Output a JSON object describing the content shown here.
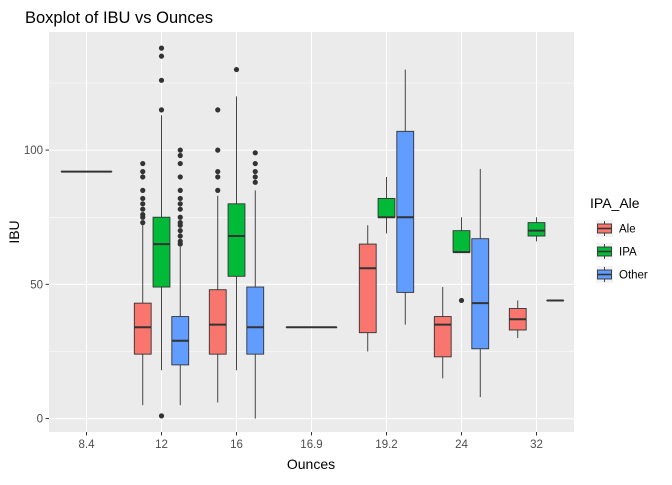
{
  "chart_data": {
    "type": "boxplot",
    "title": "Boxplot of IBU vs Ounces",
    "xlabel": "Ounces",
    "ylabel": "IBU",
    "categories": [
      "8.4",
      "12",
      "16",
      "16.9",
      "19.2",
      "24",
      "32"
    ],
    "y_ticks": [
      0,
      50,
      100
    ],
    "ylim": [
      -5,
      144
    ],
    "grid": true,
    "legend": {
      "title": "IPA_Ale",
      "position": "right",
      "entries": [
        {
          "name": "Ale",
          "color": "#F8766D"
        },
        {
          "name": "IPA",
          "color": "#00BA38"
        },
        {
          "name": "Other",
          "color": "#619CFF"
        }
      ]
    },
    "groups_per_category": 3,
    "boxes": [
      {
        "category": "8.4",
        "group": "All",
        "slot": -1,
        "span": 3,
        "color": "#F8766D",
        "min": 92,
        "q1": 92,
        "median": 92,
        "q3": 92,
        "max": 92,
        "outliers": []
      },
      {
        "category": "12",
        "group": "Ale",
        "slot": 0,
        "span": 1,
        "color": "#F8766D",
        "min": 5,
        "q1": 24,
        "median": 34,
        "q3": 43,
        "max": 72,
        "outliers": [
          73,
          75,
          76,
          78,
          80,
          82,
          85,
          90,
          92,
          95
        ]
      },
      {
        "category": "12",
        "group": "IPA",
        "slot": 1,
        "span": 1,
        "color": "#00BA38",
        "min": 18,
        "q1": 49,
        "median": 65,
        "q3": 75,
        "max": 113,
        "outliers": [
          1,
          115,
          126,
          135,
          138
        ]
      },
      {
        "category": "12",
        "group": "Other",
        "slot": 2,
        "span": 1,
        "color": "#619CFF",
        "min": 5,
        "q1": 20,
        "median": 29,
        "q3": 38,
        "max": 64,
        "outliers": [
          65,
          66,
          68,
          70,
          72,
          73,
          75,
          78,
          80,
          82,
          85,
          90,
          95,
          98,
          100
        ]
      },
      {
        "category": "16",
        "group": "Ale",
        "slot": 0,
        "span": 1,
        "color": "#F8766D",
        "min": 6,
        "q1": 24,
        "median": 35,
        "q3": 48,
        "max": 83,
        "outliers": [
          85,
          90,
          92,
          100,
          115
        ]
      },
      {
        "category": "16",
        "group": "IPA",
        "slot": 1,
        "span": 1,
        "color": "#00BA38",
        "min": 18,
        "q1": 53,
        "median": 68,
        "q3": 80,
        "max": 120,
        "outliers": [
          130
        ]
      },
      {
        "category": "16",
        "group": "Other",
        "slot": 2,
        "span": 1,
        "color": "#619CFF",
        "min": 0,
        "q1": 24,
        "median": 34,
        "q3": 49,
        "max": 85,
        "outliers": [
          88,
          90,
          92,
          95,
          99
        ]
      },
      {
        "category": "16.9",
        "group": "All",
        "slot": -1,
        "span": 3,
        "color": "#619CFF",
        "min": 34,
        "q1": 34,
        "median": 34,
        "q3": 34,
        "max": 34,
        "outliers": []
      },
      {
        "category": "19.2",
        "group": "Ale",
        "slot": 0,
        "span": 1,
        "color": "#F8766D",
        "min": 25,
        "q1": 32,
        "median": 56,
        "q3": 65,
        "max": 72,
        "outliers": []
      },
      {
        "category": "19.2",
        "group": "IPA",
        "slot": 1,
        "span": 1,
        "color": "#00BA38",
        "min": 69,
        "q1": 75,
        "median": 75,
        "q3": 82,
        "max": 90,
        "outliers": []
      },
      {
        "category": "19.2",
        "group": "Other",
        "slot": 2,
        "span": 1,
        "color": "#619CFF",
        "min": 35,
        "q1": 47,
        "median": 75,
        "q3": 107,
        "max": 130,
        "outliers": []
      },
      {
        "category": "24",
        "group": "Ale",
        "slot": 0,
        "span": 1,
        "color": "#F8766D",
        "min": 15,
        "q1": 23,
        "median": 35,
        "q3": 38,
        "max": 49,
        "outliers": []
      },
      {
        "category": "24",
        "group": "IPA",
        "slot": 1,
        "span": 1,
        "color": "#00BA38",
        "min": 62,
        "q1": 62,
        "median": 62,
        "q3": 70,
        "max": 75,
        "outliers": [
          44
        ]
      },
      {
        "category": "24",
        "group": "Other",
        "slot": 2,
        "span": 1,
        "color": "#619CFF",
        "min": 8,
        "q1": 26,
        "median": 43,
        "q3": 67,
        "max": 93,
        "outliers": []
      },
      {
        "category": "32",
        "group": "Ale",
        "slot": 0,
        "span": 1,
        "color": "#F8766D",
        "min": 30,
        "q1": 33,
        "median": 37,
        "q3": 41,
        "max": 44,
        "outliers": []
      },
      {
        "category": "32",
        "group": "IPA",
        "slot": 1,
        "span": 1,
        "color": "#00BA38",
        "min": 66,
        "q1": 68,
        "median": 70,
        "q3": 73,
        "max": 75,
        "outliers": []
      },
      {
        "category": "32",
        "group": "Other",
        "slot": 2,
        "span": 1,
        "color": "#619CFF",
        "min": 44,
        "q1": 44,
        "median": 44,
        "q3": 44,
        "max": 44,
        "outliers": []
      }
    ]
  }
}
